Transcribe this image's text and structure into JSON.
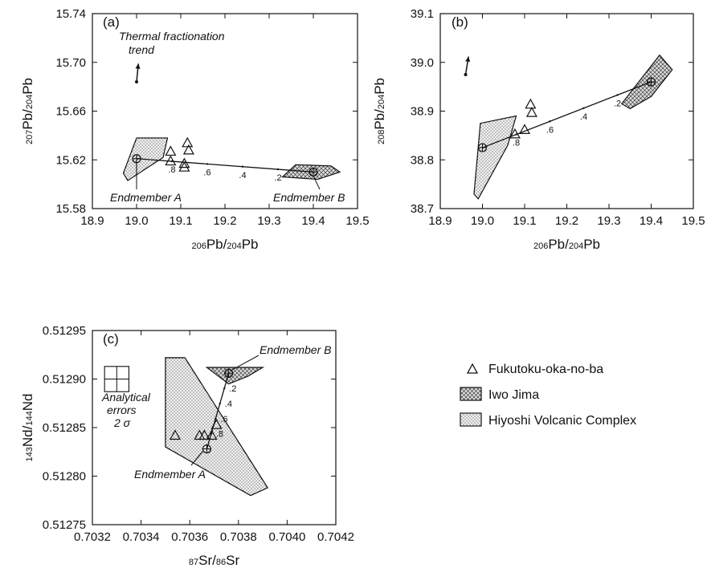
{
  "chart_data": [
    {
      "panel": "(a)",
      "type": "scatter",
      "xlabel": {
        "pre": "206",
        "mid": "Pb/",
        "pre2": "204",
        "post": "Pb"
      },
      "ylabel": {
        "pre": "207",
        "mid": "Pb/",
        "pre2": "204",
        "post": "Pb"
      },
      "xlim": [
        18.9,
        19.5
      ],
      "ylim": [
        15.58,
        15.74
      ],
      "xticks": [
        "18.9",
        "19.0",
        "19.1",
        "19.2",
        "19.3",
        "19.4",
        "19.5"
      ],
      "yticks": [
        "15.58",
        "15.62",
        "15.66",
        "15.70",
        "15.74"
      ],
      "fukutoku_oka_no_ba": [
        [
          19.077,
          15.627
        ],
        [
          19.077,
          15.619
        ],
        [
          19.108,
          15.617
        ],
        [
          19.108,
          15.614
        ],
        [
          19.115,
          15.634
        ],
        [
          19.118,
          15.628
        ]
      ],
      "iwo_jima_field": [
        [
          19.33,
          15.606
        ],
        [
          19.41,
          15.604
        ],
        [
          19.46,
          15.61
        ],
        [
          19.44,
          15.615
        ],
        [
          19.36,
          15.616
        ]
      ],
      "hiyoshi_field": [
        [
          18.97,
          15.609
        ],
        [
          19.0,
          15.638
        ],
        [
          19.07,
          15.638
        ],
        [
          19.06,
          15.622
        ],
        [
          18.98,
          15.603
        ]
      ],
      "endmember_a": [
        19.0,
        15.621
      ],
      "endmember_b": [
        19.4,
        15.61
      ],
      "mixing_ticks": [
        {
          "label": ".8",
          "x": 19.08
        },
        {
          "label": ".6",
          "x": 19.16
        },
        {
          "label": ".4",
          "x": 19.24
        },
        {
          "label": ".2",
          "x": 19.32
        }
      ],
      "annotations": {
        "trend_line1": "Thermal fractionation",
        "trend_line2": "trend",
        "em_a": "Endmember A",
        "em_b": "Endmember B"
      },
      "trend_arrow": {
        "from": [
          19.0,
          15.684
        ],
        "to": [
          19.004,
          15.699
        ]
      }
    },
    {
      "panel": "(b)",
      "type": "scatter",
      "xlabel": {
        "pre": "206",
        "mid": "Pb/",
        "pre2": "204",
        "post": "Pb"
      },
      "ylabel": {
        "pre": "208",
        "mid": "Pb/",
        "pre2": "204",
        "post": "Pb"
      },
      "xlim": [
        18.9,
        19.5
      ],
      "ylim": [
        38.7,
        39.1
      ],
      "xticks": [
        "18.9",
        "19.0",
        "19.1",
        "19.2",
        "19.3",
        "19.4",
        "19.5"
      ],
      "yticks": [
        "38.7",
        "38.8",
        "38.9",
        "39.0",
        "39.1"
      ],
      "fukutoku_oka_no_ba": [
        [
          19.077,
          38.853
        ],
        [
          19.1,
          38.862
        ],
        [
          19.114,
          38.914
        ],
        [
          19.117,
          38.897
        ]
      ],
      "iwo_jima_field": [
        [
          19.33,
          38.915
        ],
        [
          19.42,
          39.015
        ],
        [
          19.45,
          38.985
        ],
        [
          19.4,
          38.93
        ],
        [
          19.35,
          38.905
        ]
      ],
      "hiyoshi_field": [
        [
          18.98,
          38.73
        ],
        [
          18.995,
          38.875
        ],
        [
          19.08,
          38.89
        ],
        [
          19.06,
          38.83
        ],
        [
          18.99,
          38.72
        ]
      ],
      "endmember_a": [
        19.0,
        38.825
      ],
      "endmember_b": [
        19.4,
        38.96
      ],
      "mixing_ticks": [
        {
          "label": ".8",
          "x": 19.08
        },
        {
          "label": ".6",
          "x": 19.16
        },
        {
          "label": ".4",
          "x": 19.24
        },
        {
          "label": ".2",
          "x": 19.32
        }
      ],
      "trend_arrow": {
        "from": [
          18.96,
          38.975
        ],
        "to": [
          18.967,
          39.012
        ]
      }
    },
    {
      "panel": "(c)",
      "type": "scatter",
      "xlabel": {
        "pre": "87",
        "mid": "Sr/",
        "pre2": "86",
        "post": "Sr"
      },
      "ylabel": {
        "pre": "143",
        "mid": "Nd/",
        "pre2": "144",
        "post": "Nd"
      },
      "xlim": [
        0.7032,
        0.7042
      ],
      "ylim": [
        0.51275,
        0.51295
      ],
      "xticks": [
        "0.7032",
        "0.7034",
        "0.7036",
        "0.7038",
        "0.7040",
        "0.7042"
      ],
      "yticks": [
        "0.51275",
        "0.51280",
        "0.51285",
        "0.51290",
        "0.51295"
      ],
      "fukutoku_oka_no_ba": [
        [
          0.70354,
          0.512842
        ],
        [
          0.70364,
          0.512842
        ],
        [
          0.70366,
          0.512842
        ],
        [
          0.70369,
          0.512842
        ],
        [
          0.70371,
          0.512853
        ]
      ],
      "iwo_jima_field": [
        [
          0.70367,
          0.512912
        ],
        [
          0.7039,
          0.512912
        ],
        [
          0.70384,
          0.512903
        ],
        [
          0.70376,
          0.512895
        ]
      ],
      "hiyoshi_field": [
        [
          0.7035,
          0.512922
        ],
        [
          0.70358,
          0.512922
        ],
        [
          0.70392,
          0.512788
        ],
        [
          0.70385,
          0.51278
        ],
        [
          0.7035,
          0.51283
        ]
      ],
      "endmember_a": [
        0.70367,
        0.512828
      ],
      "endmember_b": [
        0.70376,
        0.512906
      ],
      "mixing_ticks": [
        {
          "label": ".8",
          "t": 0.2
        },
        {
          "label": ".6",
          "t": 0.4
        },
        {
          "label": ".4",
          "t": 0.6
        },
        {
          "label": ".2",
          "t": 0.8
        }
      ],
      "annotations": {
        "errors_line1": "Analytical",
        "errors_line2": "errors",
        "errors_line3": "2 σ",
        "em_a": "Endmember A",
        "em_b": "Endmember B"
      },
      "error_box": {
        "x": 0.7033,
        "y": 0.5129,
        "dx": 5e-05,
        "dy": 1.3e-05
      }
    }
  ],
  "legend": {
    "items": [
      {
        "label": "Fukutoku-oka-no-ba",
        "symbol": "triangle"
      },
      {
        "label": "Iwo Jima",
        "symbol": "crosshatch"
      },
      {
        "label": "Hiyoshi Volcanic Complex",
        "symbol": "stipple"
      }
    ]
  }
}
